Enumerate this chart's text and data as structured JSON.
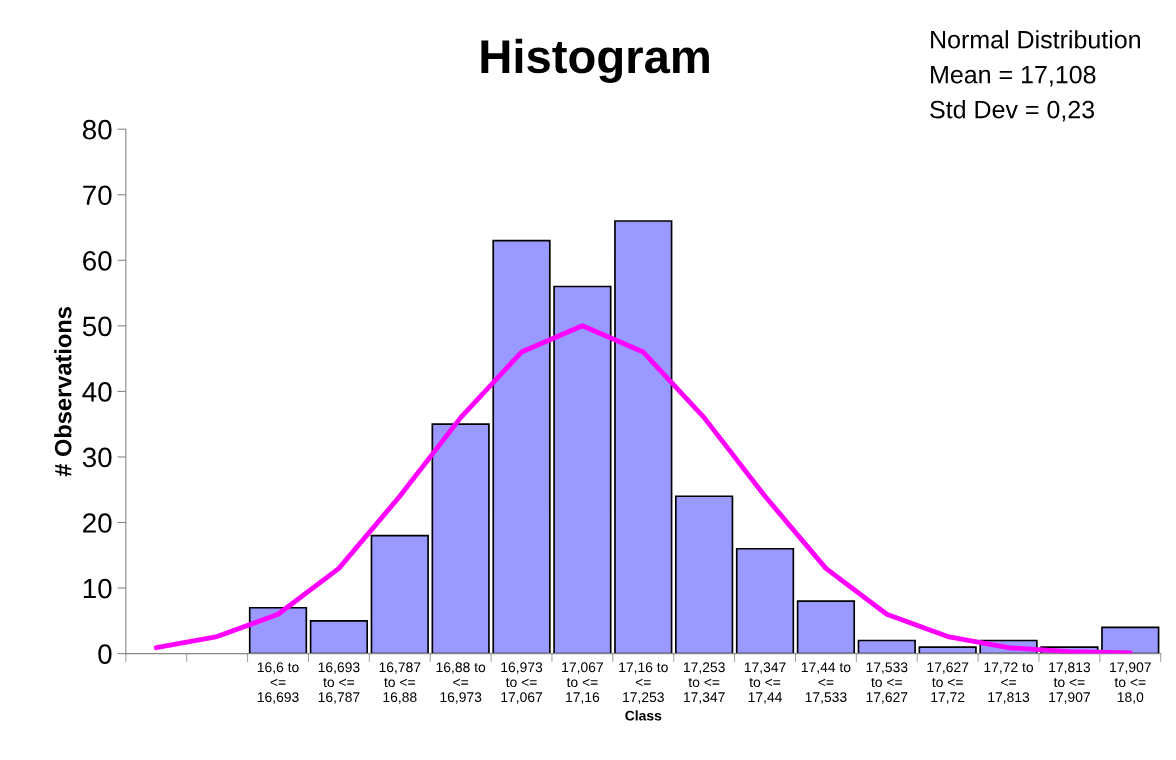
{
  "chart_data": {
    "type": "bar",
    "title": "Histogram",
    "xlabel": "Class",
    "ylabel": "# Observations",
    "annotations": [
      "Normal Distribution",
      "Mean = 17,108",
      "Std Dev = 0,23"
    ],
    "categories": [
      null,
      null,
      "16,6 to\n<=\n16,693",
      "16,693\nto <=\n16,787",
      "16,787\nto <=\n16,88",
      "16,88 to\n<=\n16,973",
      "16,973\nto <=\n17,067",
      "17,067\nto <=\n17,16",
      "17,16 to\n<=\n17,253",
      "17,253\nto <=\n17,347",
      "17,347\nto <=\n17,44",
      "17,44 to\n<=\n17,533",
      "17,533\nto <=\n17,627",
      "17,627\nto <=\n17,72",
      "17,72 to\n<=\n17,813",
      "17,813\nto <=\n17,907",
      "17,907\nto <=\n18,0"
    ],
    "series": [
      {
        "color": "#9999ff",
        "values": [
          null,
          null,
          7,
          5,
          18,
          35,
          63,
          56,
          66,
          24,
          16,
          8,
          2,
          1,
          2,
          1,
          4
        ]
      },
      {
        "type": "line",
        "color": "#ff00ff",
        "values": [
          0.9,
          2.6,
          6,
          13,
          24,
          36,
          46,
          50,
          46,
          36,
          24,
          13,
          6,
          2.6,
          0.9,
          0.3,
          0.1
        ]
      }
    ],
    "ylim": [
      0,
      80
    ],
    "yticks": [
      0,
      10,
      20,
      30,
      40,
      50,
      60,
      70,
      80
    ],
    "grid": false,
    "marker": "none",
    "line_style": "solid"
  }
}
